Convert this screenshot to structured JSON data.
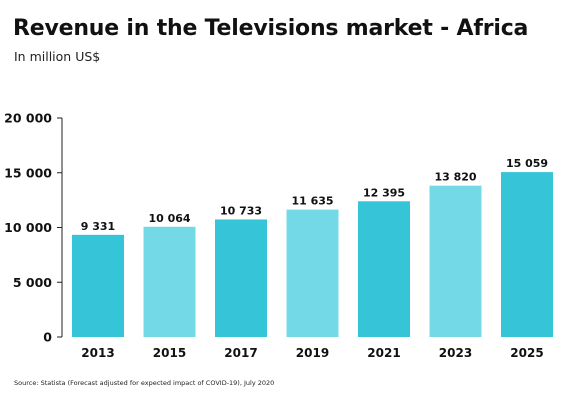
{
  "title": "Revenue in the Televisions market - Africa",
  "subtitle": "In million US$",
  "source": "Source: Statista (Forecast adjusted for expected impact of COVID-19), July 2020",
  "colors": {
    "bar_primary": "#35c4d8",
    "bar_secondary": "#73d9e7",
    "axis": "#222222",
    "text": "#111111"
  },
  "chart_data": {
    "type": "bar",
    "title": "Revenue in the Televisions market - Africa",
    "subtitle": "In million US$",
    "xlabel": "",
    "ylabel": "",
    "categories": [
      "2013",
      "2015",
      "2017",
      "2019",
      "2021",
      "2023",
      "2025"
    ],
    "values": [
      9331,
      10064,
      10733,
      11635,
      12395,
      13820,
      15059
    ],
    "value_labels": [
      "9 331",
      "10 064",
      "10 733",
      "11 635",
      "12 395",
      "13 820",
      "15 059"
    ],
    "yticks": [
      0,
      5000,
      10000,
      15000,
      20000
    ],
    "ytick_labels": [
      "0",
      "5 000",
      "10 000",
      "15 000",
      "20 000"
    ],
    "ylim": [
      0,
      20000
    ],
    "grid": false,
    "legend": "none"
  }
}
